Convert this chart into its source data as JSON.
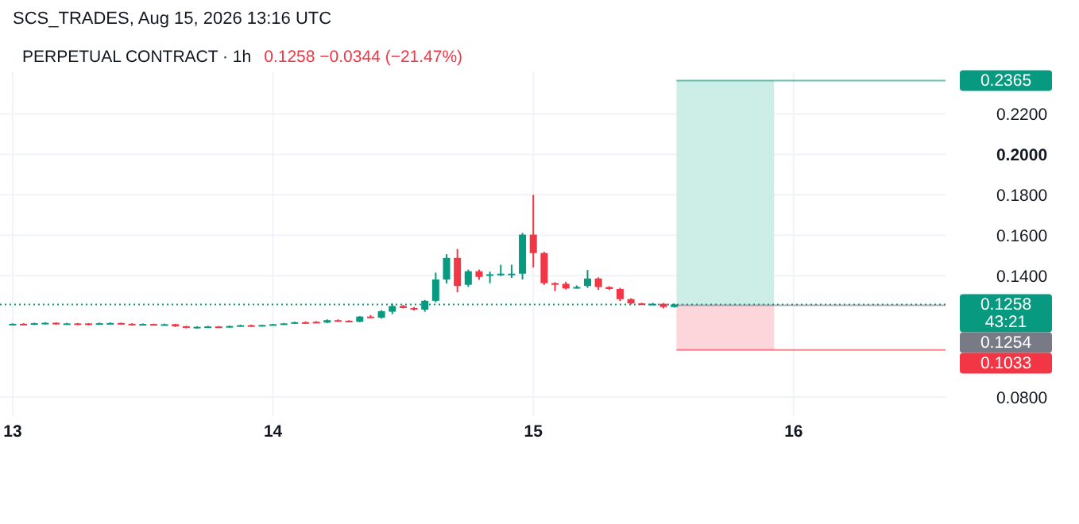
{
  "chart_data": {
    "type": "candlestick",
    "title": "PERPETUAL CONTRACT · 1h",
    "subtitle": "0.1258  −0.0344 (−21.47%)",
    "annotations": [
      "SCS_TRADES, Aug 15, 2026 13:16 UTC",
      "43:21"
    ],
    "x": [
      "2026-08-13T00:00",
      "2026-08-13T01:00",
      "2026-08-13T02:00",
      "2026-08-13T03:00",
      "2026-08-13T04:00",
      "2026-08-13T05:00",
      "2026-08-13T06:00",
      "2026-08-13T07:00",
      "2026-08-13T08:00",
      "2026-08-13T09:00",
      "2026-08-13T10:00",
      "2026-08-13T11:00",
      "2026-08-13T12:00",
      "2026-08-13T13:00",
      "2026-08-13T14:00",
      "2026-08-13T15:00",
      "2026-08-13T16:00",
      "2026-08-13T17:00",
      "2026-08-13T18:00",
      "2026-08-13T19:00",
      "2026-08-13T20:00",
      "2026-08-13T21:00",
      "2026-08-13T22:00",
      "2026-08-13T23:00",
      "2026-08-14T00:00",
      "2026-08-14T01:00",
      "2026-08-14T02:00",
      "2026-08-14T03:00",
      "2026-08-14T04:00",
      "2026-08-14T05:00",
      "2026-08-14T06:00",
      "2026-08-14T07:00",
      "2026-08-14T08:00",
      "2026-08-14T09:00",
      "2026-08-14T10:00",
      "2026-08-14T11:00",
      "2026-08-14T12:00",
      "2026-08-14T13:00",
      "2026-08-14T14:00",
      "2026-08-14T15:00",
      "2026-08-14T16:00",
      "2026-08-14T17:00",
      "2026-08-14T18:00",
      "2026-08-14T19:00",
      "2026-08-14T20:00",
      "2026-08-14T21:00",
      "2026-08-14T22:00",
      "2026-08-14T23:00",
      "2026-08-15T00:00",
      "2026-08-15T01:00",
      "2026-08-15T02:00",
      "2026-08-15T03:00",
      "2026-08-15T04:00",
      "2026-08-15T05:00",
      "2026-08-15T06:00",
      "2026-08-15T07:00",
      "2026-08-15T08:00",
      "2026-08-15T09:00",
      "2026-08-15T10:00",
      "2026-08-15T11:00",
      "2026-08-15T12:00",
      "2026-08-15T13:00"
    ],
    "ohlc": [
      [
        0.1158,
        0.1164,
        0.1155,
        0.1162
      ],
      [
        0.1162,
        0.1165,
        0.1155,
        0.1158
      ],
      [
        0.1158,
        0.1168,
        0.1156,
        0.1165
      ],
      [
        0.1165,
        0.117,
        0.116,
        0.1167
      ],
      [
        0.1167,
        0.1169,
        0.1158,
        0.1162
      ],
      [
        0.1162,
        0.1167,
        0.1158,
        0.1164
      ],
      [
        0.1164,
        0.1166,
        0.1156,
        0.116
      ],
      [
        0.1164,
        0.1166,
        0.1155,
        0.116
      ],
      [
        0.116,
        0.1168,
        0.1157,
        0.1165
      ],
      [
        0.1165,
        0.1169,
        0.116,
        0.1166
      ],
      [
        0.1166,
        0.1168,
        0.1158,
        0.1162
      ],
      [
        0.1162,
        0.1165,
        0.1155,
        0.1158
      ],
      [
        0.1158,
        0.1164,
        0.1155,
        0.1161
      ],
      [
        0.1161,
        0.1163,
        0.1154,
        0.1157
      ],
      [
        0.1157,
        0.1163,
        0.1154,
        0.116
      ],
      [
        0.116,
        0.1162,
        0.1146,
        0.115
      ],
      [
        0.115,
        0.1152,
        0.114,
        0.1144
      ],
      [
        0.1144,
        0.115,
        0.114,
        0.1147
      ],
      [
        0.1147,
        0.1152,
        0.1143,
        0.1149
      ],
      [
        0.1149,
        0.1151,
        0.1142,
        0.1146
      ],
      [
        0.1146,
        0.1153,
        0.1143,
        0.1151
      ],
      [
        0.1151,
        0.1157,
        0.1148,
        0.1155
      ],
      [
        0.1155,
        0.1158,
        0.1148,
        0.1152
      ],
      [
        0.1152,
        0.1158,
        0.115,
        0.1156
      ],
      [
        0.1156,
        0.1162,
        0.1153,
        0.116
      ],
      [
        0.116,
        0.1166,
        0.1157,
        0.1164
      ],
      [
        0.1164,
        0.1172,
        0.1161,
        0.117
      ],
      [
        0.117,
        0.1174,
        0.1163,
        0.1167
      ],
      [
        0.1172,
        0.1175,
        0.1165,
        0.1168
      ],
      [
        0.1168,
        0.1184,
        0.1165,
        0.118
      ],
      [
        0.118,
        0.1184,
        0.1174,
        0.1177
      ],
      [
        0.1177,
        0.118,
        0.117,
        0.1174
      ],
      [
        0.1172,
        0.12,
        0.117,
        0.1198
      ],
      [
        0.1198,
        0.1205,
        0.119,
        0.1192
      ],
      [
        0.1192,
        0.123,
        0.1188,
        0.1224
      ],
      [
        0.1222,
        0.1262,
        0.121,
        0.125
      ],
      [
        0.125,
        0.1256,
        0.1238,
        0.124
      ],
      [
        0.124,
        0.1245,
        0.1228,
        0.1232
      ],
      [
        0.1232,
        0.128,
        0.1222,
        0.1276
      ],
      [
        0.1276,
        0.1415,
        0.1268,
        0.1381
      ],
      [
        0.1381,
        0.1506,
        0.1362,
        0.1488
      ],
      [
        0.1488,
        0.1532,
        0.1318,
        0.1349
      ],
      [
        0.1355,
        0.143,
        0.1345,
        0.1422
      ],
      [
        0.1422,
        0.143,
        0.138,
        0.1394
      ],
      [
        0.14,
        0.142,
        0.1363,
        0.1407
      ],
      [
        0.1402,
        0.1454,
        0.1398,
        0.141
      ],
      [
        0.1405,
        0.1454,
        0.1389,
        0.141
      ],
      [
        0.141,
        0.1612,
        0.1381,
        0.1603
      ],
      [
        0.1603,
        0.18,
        0.1441,
        0.1512
      ],
      [
        0.1512,
        0.1518,
        0.1355,
        0.1363
      ],
      [
        0.1363,
        0.1368,
        0.1324,
        0.1355
      ],
      [
        0.136,
        0.137,
        0.1332,
        0.1337
      ],
      [
        0.1342,
        0.1352,
        0.1336,
        0.1344
      ],
      [
        0.1349,
        0.1428,
        0.134,
        0.1386
      ],
      [
        0.1386,
        0.1392,
        0.133,
        0.1344
      ],
      [
        0.1344,
        0.1348,
        0.133,
        0.1334
      ],
      [
        0.1334,
        0.134,
        0.1275,
        0.1284
      ],
      [
        0.1284,
        0.1288,
        0.1258,
        0.1263
      ],
      [
        0.1263,
        0.1266,
        0.1255,
        0.1258
      ],
      [
        0.1258,
        0.1265,
        0.1255,
        0.1261
      ],
      [
        0.1261,
        0.1265,
        0.1238,
        0.1245
      ],
      [
        0.1245,
        0.1262,
        0.1242,
        0.1258
      ]
    ],
    "xlim": [
      "2026-08-12T22:50",
      "2026-08-16T14:00"
    ],
    "xticks": [
      {
        "value": "2026-08-13",
        "label": "13"
      },
      {
        "value": "2026-08-14",
        "label": "14"
      },
      {
        "value": "2026-08-15",
        "label": "15"
      },
      {
        "value": "2026-08-16",
        "label": "16"
      }
    ],
    "ylim": [
      0.0706,
      0.241
    ],
    "yticks": [
      {
        "value": 0.08,
        "label": "0.0800"
      },
      {
        "value": 0.14,
        "label": "0.1400"
      },
      {
        "value": 0.16,
        "label": "0.1600"
      },
      {
        "value": 0.18,
        "label": "0.1800"
      },
      {
        "value": 0.2,
        "label": "0.2000"
      },
      {
        "value": 0.22,
        "label": "0.2200"
      }
    ],
    "grid": true,
    "bands": [
      {
        "axis": "y",
        "from": 0.1254,
        "to": 0.2365,
        "color": "#cdeee6"
      },
      {
        "axis": "y",
        "from": 0.1033,
        "to": 0.1254,
        "color": "#fcd6db"
      }
    ],
    "ref_lines": [
      {
        "axis": "y",
        "value": 0.1258,
        "label": "0.1258",
        "color": "#089981",
        "line_style": "dotted"
      },
      {
        "axis": "y",
        "value": 0.2365,
        "label": "0.2365",
        "color": "#089981",
        "line_style": "solid"
      },
      {
        "axis": "y",
        "value": 0.1254,
        "label": "0.1254",
        "color": "#787b86",
        "line_style": "solid"
      },
      {
        "axis": "y",
        "value": 0.1033,
        "label": "0.1033",
        "color": "#f23645",
        "line_style": "solid"
      }
    ]
  }
}
